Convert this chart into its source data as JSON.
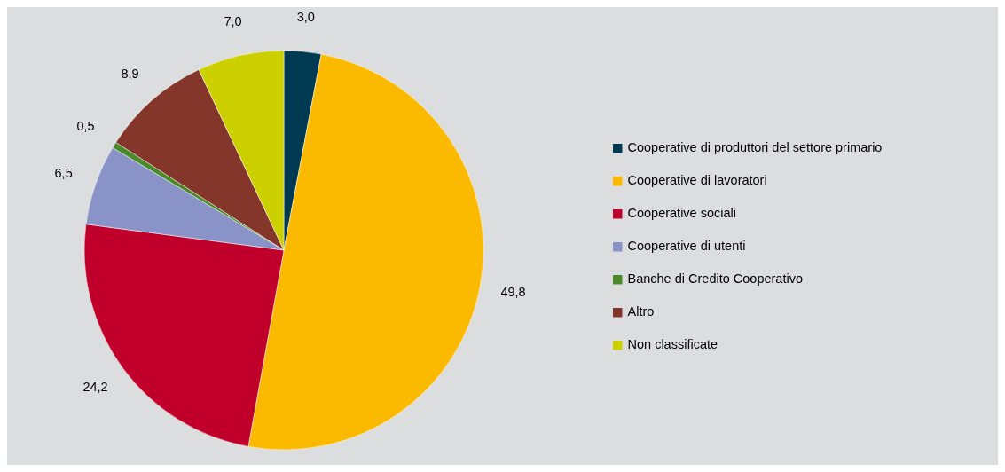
{
  "chart_data": {
    "type": "pie",
    "categories": [
      "Cooperative di produttori del settore primario",
      "Cooperative di lavoratori",
      "Cooperative sociali",
      "Cooperative di utenti",
      "Banche di Credito Cooperativo",
      "Altro",
      "Non classificate"
    ],
    "values": [
      3.0,
      49.8,
      24.2,
      6.5,
      0.5,
      8.9,
      7.0
    ],
    "value_labels": [
      "3,0",
      "49,8",
      "24,2",
      "6,5",
      "0,5",
      "8,9",
      "7,0"
    ],
    "colors": [
      "#003a52",
      "#fbba00",
      "#c0002a",
      "#8a93c8",
      "#4a8a2a",
      "#85362a",
      "#cdd000"
    ],
    "legend": "right"
  }
}
